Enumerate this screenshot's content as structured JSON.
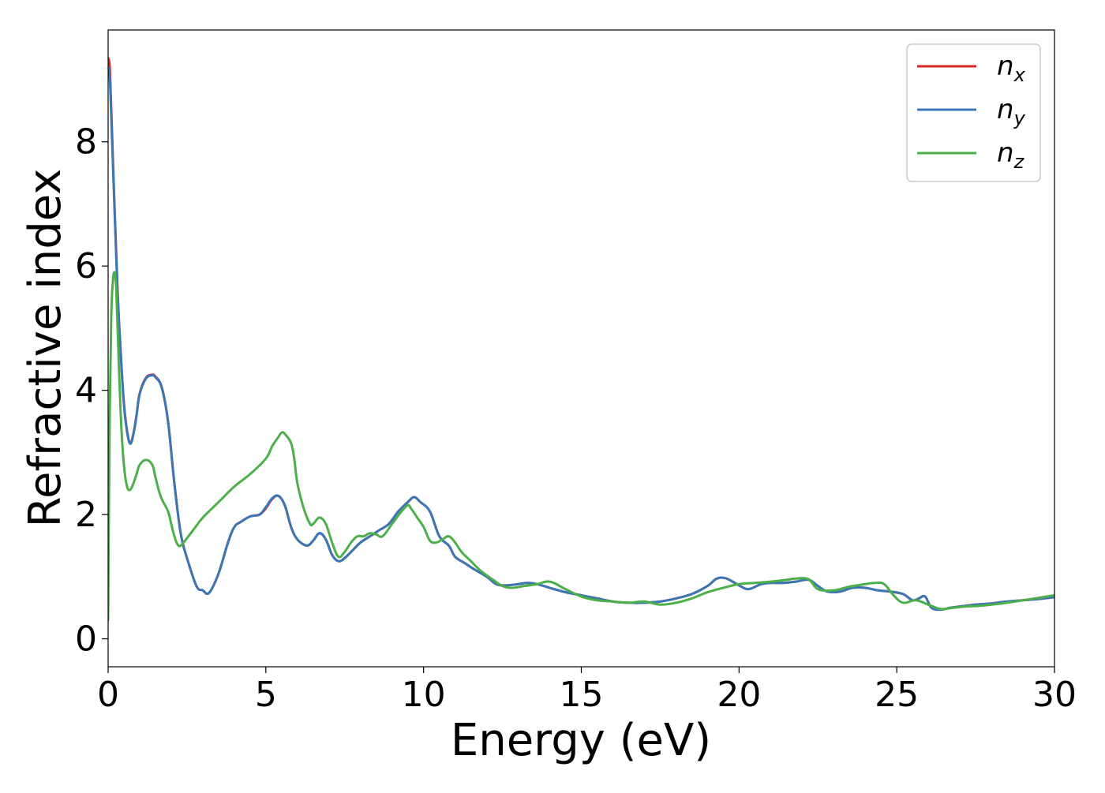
{
  "chart_data": {
    "type": "line",
    "xlabel": "Energy (eV)",
    "ylabel": "Refractive index",
    "xlim": [
      0,
      30
    ],
    "ylim": [
      -0.45,
      9.8
    ],
    "xticks": [
      0,
      5,
      10,
      15,
      20,
      25,
      30
    ],
    "xtick_labels": [
      "0",
      "5",
      "10",
      "15",
      "20",
      "25",
      "30"
    ],
    "yticks": [
      0,
      2,
      4,
      6,
      8
    ],
    "ytick_labels": [
      "0",
      "2",
      "4",
      "6",
      "8"
    ],
    "grid": false,
    "legend": {
      "position": "top-right",
      "entries": [
        {
          "base": "n",
          "sub": "x",
          "color": "#d62728"
        },
        {
          "base": "n",
          "sub": "y",
          "color": "#3a78b5"
        },
        {
          "base": "n",
          "sub": "z",
          "color": "#4daf4a"
        }
      ]
    },
    "series": [
      {
        "name": "n_x",
        "color": "#d62728",
        "x": [
          0,
          0.05,
          0.1,
          0.2,
          0.3,
          0.4,
          0.5,
          0.6,
          0.7,
          0.8,
          0.9,
          1.0,
          1.2,
          1.4,
          1.5,
          1.7,
          1.9,
          2.1,
          2.3,
          2.5,
          2.8,
          3.0,
          3.2,
          3.5,
          3.8,
          4.0,
          4.2,
          4.5,
          4.8,
          5.0,
          5.2,
          5.4,
          5.6,
          5.8,
          6.0,
          6.3,
          6.5,
          6.7,
          6.9,
          7.1,
          7.3,
          7.5,
          7.8,
          8.0,
          8.3,
          8.6,
          8.9,
          9.2,
          9.5,
          9.7,
          9.9,
          10.2,
          10.5,
          10.8,
          11.0,
          11.3,
          11.6,
          12.0,
          12.3,
          12.6,
          13.0,
          13.3,
          13.6,
          14.0,
          14.5,
          15.0,
          15.5,
          16.0,
          16.5,
          17.0,
          17.5,
          18.0,
          18.5,
          19.0,
          19.3,
          19.6,
          20.0,
          20.3,
          20.7,
          21.0,
          21.4,
          21.8,
          22.2,
          22.5,
          22.8,
          23.2,
          23.6,
          24.0,
          24.4,
          24.8,
          25.2,
          25.5,
          25.7,
          25.9,
          26.1,
          26.4,
          26.7,
          27.0,
          27.5,
          28.0,
          28.5,
          29.0,
          29.5,
          30.0
        ],
        "values": [
          9.35,
          9.2,
          8.5,
          7.0,
          5.6,
          4.6,
          3.8,
          3.35,
          3.15,
          3.3,
          3.6,
          3.95,
          4.2,
          4.25,
          4.22,
          4.05,
          3.5,
          2.5,
          1.7,
          1.3,
          0.85,
          0.78,
          0.74,
          1.05,
          1.55,
          1.8,
          1.88,
          1.97,
          2.0,
          2.1,
          2.25,
          2.3,
          2.15,
          1.8,
          1.6,
          1.5,
          1.58,
          1.7,
          1.6,
          1.35,
          1.25,
          1.3,
          1.45,
          1.55,
          1.65,
          1.75,
          1.85,
          2.05,
          2.2,
          2.28,
          2.2,
          2.05,
          1.65,
          1.5,
          1.32,
          1.22,
          1.12,
          1.0,
          0.88,
          0.86,
          0.88,
          0.9,
          0.88,
          0.82,
          0.75,
          0.7,
          0.65,
          0.6,
          0.58,
          0.58,
          0.6,
          0.65,
          0.72,
          0.85,
          0.97,
          0.97,
          0.86,
          0.8,
          0.88,
          0.9,
          0.9,
          0.92,
          0.95,
          0.85,
          0.76,
          0.76,
          0.82,
          0.82,
          0.78,
          0.76,
          0.72,
          0.62,
          0.65,
          0.68,
          0.5,
          0.47,
          0.5,
          0.52,
          0.55,
          0.57,
          0.6,
          0.62,
          0.64,
          0.67
        ]
      },
      {
        "name": "n_y",
        "color": "#3a78b5",
        "x": [
          0,
          0.05,
          0.1,
          0.2,
          0.3,
          0.4,
          0.5,
          0.6,
          0.7,
          0.8,
          0.9,
          1.0,
          1.2,
          1.4,
          1.5,
          1.7,
          1.9,
          2.1,
          2.3,
          2.5,
          2.8,
          3.0,
          3.2,
          3.5,
          3.8,
          4.0,
          4.2,
          4.5,
          4.8,
          5.0,
          5.2,
          5.4,
          5.6,
          5.8,
          6.0,
          6.3,
          6.5,
          6.7,
          6.9,
          7.1,
          7.3,
          7.5,
          7.8,
          8.0,
          8.3,
          8.6,
          8.9,
          9.2,
          9.5,
          9.7,
          9.9,
          10.2,
          10.5,
          10.8,
          11.0,
          11.3,
          11.6,
          12.0,
          12.3,
          12.6,
          13.0,
          13.3,
          13.6,
          14.0,
          14.5,
          15.0,
          15.5,
          16.0,
          16.5,
          17.0,
          17.5,
          18.0,
          18.5,
          19.0,
          19.3,
          19.6,
          20.0,
          20.3,
          20.7,
          21.0,
          21.4,
          21.8,
          22.2,
          22.5,
          22.8,
          23.2,
          23.6,
          24.0,
          24.4,
          24.8,
          25.2,
          25.5,
          25.7,
          25.9,
          26.1,
          26.4,
          26.7,
          27.0,
          27.5,
          28.0,
          28.5,
          29.0,
          29.5,
          30.0
        ],
        "values": [
          9.2,
          9.05,
          8.4,
          6.95,
          5.55,
          4.58,
          3.78,
          3.33,
          3.14,
          3.29,
          3.59,
          3.94,
          4.19,
          4.24,
          4.21,
          4.04,
          3.49,
          2.5,
          1.7,
          1.3,
          0.85,
          0.78,
          0.74,
          1.05,
          1.55,
          1.8,
          1.88,
          1.97,
          2.0,
          2.12,
          2.26,
          2.3,
          2.15,
          1.8,
          1.6,
          1.5,
          1.58,
          1.7,
          1.6,
          1.35,
          1.25,
          1.3,
          1.45,
          1.55,
          1.65,
          1.75,
          1.85,
          2.05,
          2.2,
          2.28,
          2.2,
          2.05,
          1.65,
          1.5,
          1.32,
          1.22,
          1.12,
          1.0,
          0.88,
          0.86,
          0.88,
          0.9,
          0.88,
          0.82,
          0.75,
          0.7,
          0.65,
          0.6,
          0.58,
          0.58,
          0.6,
          0.65,
          0.72,
          0.85,
          0.97,
          0.97,
          0.86,
          0.8,
          0.88,
          0.9,
          0.9,
          0.92,
          0.95,
          0.85,
          0.76,
          0.76,
          0.82,
          0.82,
          0.78,
          0.76,
          0.72,
          0.62,
          0.65,
          0.68,
          0.5,
          0.47,
          0.5,
          0.52,
          0.55,
          0.57,
          0.6,
          0.62,
          0.64,
          0.67
        ]
      },
      {
        "name": "n_z",
        "color": "#4daf4a",
        "x": [
          0,
          0.02,
          0.05,
          0.1,
          0.15,
          0.2,
          0.25,
          0.3,
          0.4,
          0.5,
          0.6,
          0.7,
          0.8,
          0.9,
          1.0,
          1.2,
          1.4,
          1.5,
          1.6,
          1.7,
          1.9,
          2.0,
          2.1,
          2.2,
          2.3,
          2.5,
          2.8,
          3.0,
          3.5,
          4.0,
          4.5,
          5.0,
          5.2,
          5.4,
          5.5,
          5.6,
          5.8,
          5.9,
          6.0,
          6.2,
          6.4,
          6.5,
          6.7,
          6.9,
          7.1,
          7.3,
          7.5,
          7.7,
          7.9,
          8.1,
          8.3,
          8.5,
          8.7,
          9.0,
          9.3,
          9.5,
          9.6,
          9.8,
          10.0,
          10.2,
          10.4,
          10.6,
          10.8,
          11.0,
          11.2,
          11.5,
          11.8,
          12.2,
          12.5,
          12.8,
          13.2,
          13.6,
          14.0,
          14.5,
          15.0,
          15.5,
          16.0,
          16.5,
          17.0,
          17.5,
          18.0,
          18.5,
          19.0,
          19.5,
          20.0,
          20.5,
          21.0,
          21.5,
          21.8,
          22.2,
          22.5,
          23.0,
          23.5,
          24.0,
          24.3,
          24.6,
          24.9,
          25.2,
          25.6,
          26.0,
          26.4,
          26.8,
          27.2,
          27.6,
          28.0,
          28.5,
          29.0,
          29.5,
          30.0
        ],
        "values": [
          0.3,
          1.8,
          3.6,
          5.2,
          5.75,
          5.9,
          5.7,
          5.0,
          3.6,
          2.8,
          2.45,
          2.4,
          2.5,
          2.65,
          2.8,
          2.88,
          2.8,
          2.6,
          2.4,
          2.25,
          2.05,
          1.85,
          1.65,
          1.52,
          1.5,
          1.62,
          1.82,
          1.95,
          2.2,
          2.45,
          2.65,
          2.9,
          3.1,
          3.25,
          3.32,
          3.3,
          3.15,
          2.9,
          2.5,
          2.1,
          1.85,
          1.85,
          1.95,
          1.85,
          1.55,
          1.32,
          1.4,
          1.55,
          1.65,
          1.65,
          1.7,
          1.68,
          1.65,
          1.85,
          2.05,
          2.15,
          2.1,
          1.95,
          1.8,
          1.58,
          1.55,
          1.6,
          1.65,
          1.55,
          1.4,
          1.25,
          1.1,
          0.95,
          0.85,
          0.82,
          0.85,
          0.88,
          0.92,
          0.8,
          0.68,
          0.62,
          0.6,
          0.58,
          0.6,
          0.55,
          0.58,
          0.65,
          0.75,
          0.82,
          0.88,
          0.9,
          0.92,
          0.95,
          0.97,
          0.96,
          0.8,
          0.78,
          0.84,
          0.88,
          0.9,
          0.88,
          0.7,
          0.58,
          0.62,
          0.55,
          0.48,
          0.5,
          0.52,
          0.53,
          0.55,
          0.58,
          0.62,
          0.66,
          0.7
        ]
      }
    ]
  }
}
